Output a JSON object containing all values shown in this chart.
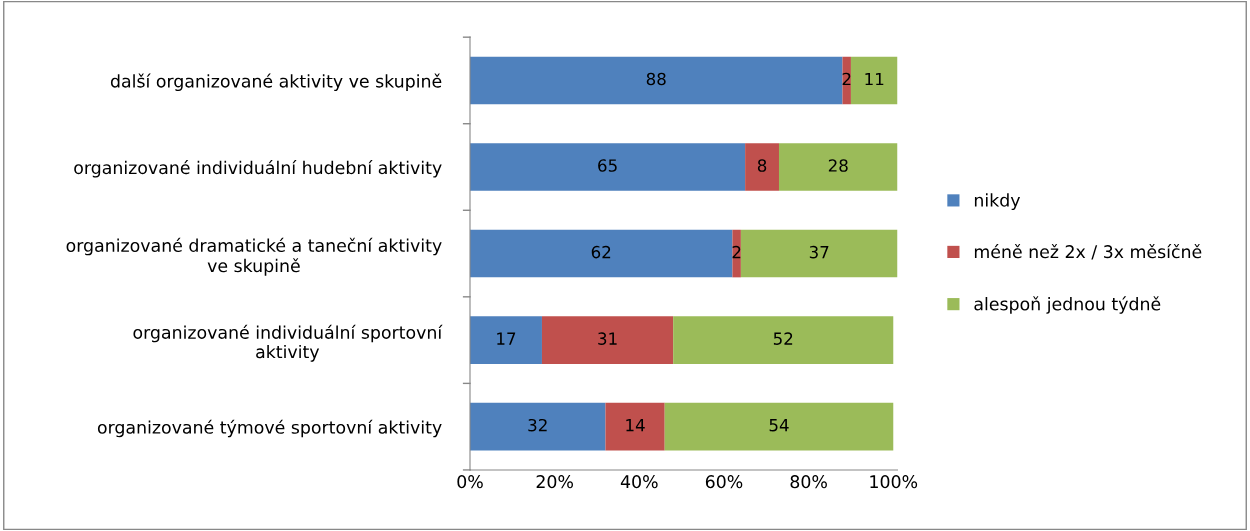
{
  "chart_data": {
    "type": "bar",
    "orientation": "horizontal",
    "stacked": true,
    "categories": [
      "další organizované aktivity ve skupině",
      "organizované individuální hudební aktivity",
      "organizované dramatické a taneční aktivity\nve skupině",
      "organizované individuální sportovní\naktivity",
      "organizované týmové sportovní aktivity"
    ],
    "series": [
      {
        "name": "nikdy",
        "color": "#4f81bd",
        "values": [
          88,
          65,
          62,
          17,
          32
        ]
      },
      {
        "name": "méně než 2x / 3x měsíčně",
        "color": "#c0504d",
        "values": [
          2,
          8,
          2,
          31,
          14
        ]
      },
      {
        "name": "alespoň jednou týdně",
        "color": "#9bbb59",
        "values": [
          11,
          28,
          37,
          52,
          54
        ]
      }
    ],
    "xlim": [
      0,
      101
    ],
    "xticks": [
      {
        "value": 0,
        "label": "0%"
      },
      {
        "value": 20,
        "label": "20%"
      },
      {
        "value": 40,
        "label": "40%"
      },
      {
        "value": 60,
        "label": "60%"
      },
      {
        "value": 80,
        "label": "80%"
      },
      {
        "value": 100,
        "label": "100%"
      }
    ],
    "data_labels": true,
    "grid": false,
    "legend": "right"
  }
}
